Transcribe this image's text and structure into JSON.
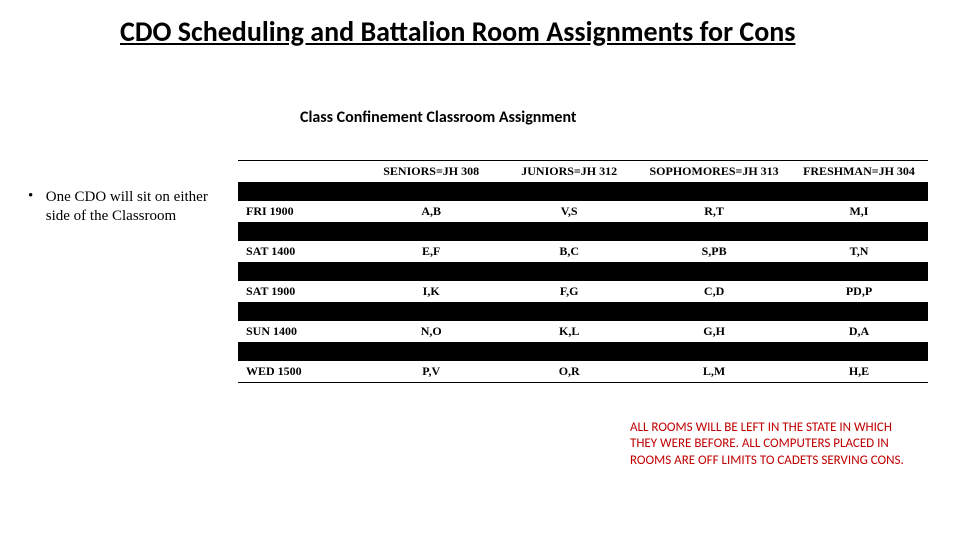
{
  "title": "CDO Scheduling and Battalion Room Assignments for Cons",
  "subtitle": "Class Confinement Classroom Assignment",
  "bullet": "One CDO will sit on either side of the Classroom",
  "table": {
    "columns": [
      "",
      "SENIORS=JH 308",
      "JUNIORS=JH 312",
      "SOPHOMORES=JH 313",
      "FRESHMAN=JH 304"
    ],
    "col_widths": [
      "18%",
      "20%",
      "20%",
      "22%",
      "20%"
    ],
    "rows": [
      [
        "FRI 1900",
        "A,B",
        "V,S",
        "R,T",
        "M,I"
      ],
      [
        "SAT 1400",
        "E,F",
        "B,C",
        "S,PB",
        "T,N"
      ],
      [
        "SAT 1900",
        "I,K",
        "F,G",
        "C,D",
        "PD,P"
      ],
      [
        "SUN 1400",
        "N,O",
        "K,L",
        "G,H",
        "D,A"
      ],
      [
        "WED 1500",
        "P,V",
        "O,R",
        "L,M",
        "H,E"
      ]
    ]
  },
  "warning": "ALL ROOMS WILL BE LEFT IN THE STATE IN WHICH THEY WERE BEFORE. ALL COMPUTERS PLACED IN ROOMS ARE OFF LIMITS TO CADETS SERVING CONS.",
  "colors": {
    "warning_text": "#c00000",
    "black_row": "#000000",
    "bg": "#ffffff"
  }
}
